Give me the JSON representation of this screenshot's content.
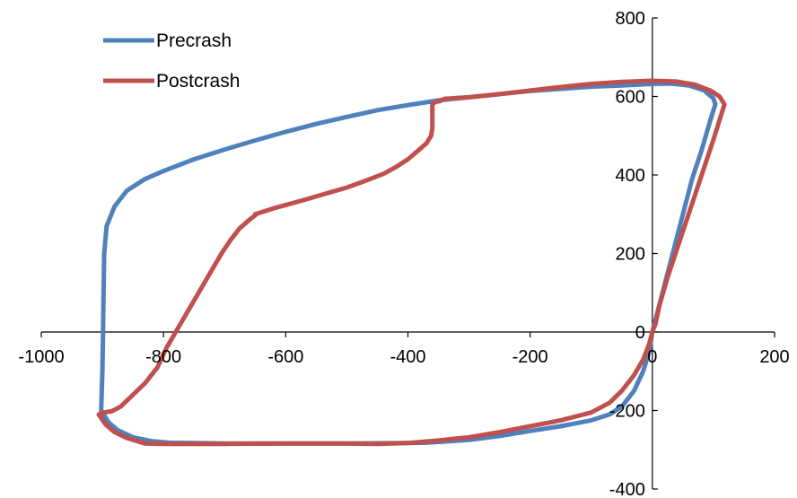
{
  "chart_data": {
    "type": "line",
    "title": "",
    "xlabel": "",
    "ylabel": "",
    "xlim": [
      -1000,
      200
    ],
    "ylim": [
      -400,
      800
    ],
    "xticks": [
      -1000,
      -800,
      -600,
      -400,
      -200,
      0,
      200
    ],
    "yticks": [
      -400,
      -200,
      0,
      200,
      400,
      600,
      800
    ],
    "axes_cross_at": [
      0,
      0
    ],
    "grid": false,
    "legend": "top-left",
    "series": [
      {
        "name": "Precrash",
        "color": "#4F81BD",
        "points": [
          [
            0,
            0
          ],
          [
            10,
            60
          ],
          [
            20,
            120
          ],
          [
            35,
            210
          ],
          [
            50,
            300
          ],
          [
            65,
            390
          ],
          [
            80,
            460
          ],
          [
            95,
            540
          ],
          [
            103,
            580
          ],
          [
            100,
            595
          ],
          [
            85,
            615
          ],
          [
            60,
            628
          ],
          [
            30,
            633
          ],
          [
            0,
            632
          ],
          [
            -50,
            628
          ],
          [
            -100,
            625
          ],
          [
            -200,
            614
          ],
          [
            -300,
            598
          ],
          [
            -350,
            590
          ],
          [
            -400,
            578
          ],
          [
            -450,
            565
          ],
          [
            -500,
            548
          ],
          [
            -550,
            530
          ],
          [
            -600,
            510
          ],
          [
            -650,
            488
          ],
          [
            -700,
            465
          ],
          [
            -750,
            440
          ],
          [
            -800,
            410
          ],
          [
            -830,
            390
          ],
          [
            -860,
            360
          ],
          [
            -880,
            320
          ],
          [
            -893,
            270
          ],
          [
            -897,
            200
          ],
          [
            -898,
            100
          ],
          [
            -899,
            0
          ],
          [
            -900,
            -100
          ],
          [
            -902,
            -200
          ],
          [
            -890,
            -230
          ],
          [
            -875,
            -250
          ],
          [
            -850,
            -268
          ],
          [
            -820,
            -278
          ],
          [
            -790,
            -282
          ],
          [
            -750,
            -283
          ],
          [
            -700,
            -284
          ],
          [
            -600,
            -284
          ],
          [
            -500,
            -284
          ],
          [
            -400,
            -283
          ],
          [
            -370,
            -282
          ],
          [
            -300,
            -275
          ],
          [
            -250,
            -265
          ],
          [
            -200,
            -252
          ],
          [
            -150,
            -240
          ],
          [
            -100,
            -225
          ],
          [
            -70,
            -210
          ],
          [
            -50,
            -190
          ],
          [
            -30,
            -150
          ],
          [
            -15,
            -100
          ],
          [
            -5,
            -50
          ],
          [
            0,
            0
          ]
        ]
      },
      {
        "name": "Postcrash",
        "color": "#C0504D",
        "points": [
          [
            -650,
            300
          ],
          [
            -620,
            315
          ],
          [
            -580,
            332
          ],
          [
            -540,
            350
          ],
          [
            -500,
            368
          ],
          [
            -470,
            385
          ],
          [
            -440,
            403
          ],
          [
            -420,
            420
          ],
          [
            -400,
            440
          ],
          [
            -385,
            460
          ],
          [
            -370,
            480
          ],
          [
            -362,
            500
          ],
          [
            -360,
            520
          ],
          [
            -360,
            540
          ],
          [
            -360,
            560
          ],
          [
            -360,
            580
          ],
          [
            -355,
            586
          ],
          [
            -348,
            588
          ],
          [
            -340,
            594
          ],
          [
            -300,
            598
          ],
          [
            -250,
            606
          ],
          [
            -200,
            615
          ],
          [
            -150,
            624
          ],
          [
            -100,
            632
          ],
          [
            -50,
            637
          ],
          [
            0,
            640
          ],
          [
            40,
            638
          ],
          [
            70,
            630
          ],
          [
            95,
            615
          ],
          [
            110,
            600
          ],
          [
            118,
            580
          ],
          [
            112,
            550
          ],
          [
            100,
            490
          ],
          [
            85,
            420
          ],
          [
            70,
            350
          ],
          [
            55,
            280
          ],
          [
            40,
            210
          ],
          [
            25,
            140
          ],
          [
            12,
            70
          ],
          [
            5,
            20
          ],
          [
            0,
            0
          ],
          [
            -5,
            -30
          ],
          [
            -15,
            -70
          ],
          [
            -30,
            -110
          ],
          [
            -50,
            -150
          ],
          [
            -70,
            -180
          ],
          [
            -100,
            -205
          ],
          [
            -150,
            -225
          ],
          [
            -200,
            -240
          ],
          [
            -250,
            -255
          ],
          [
            -300,
            -268
          ],
          [
            -350,
            -276
          ],
          [
            -400,
            -283
          ],
          [
            -450,
            -285
          ],
          [
            -500,
            -284
          ],
          [
            -600,
            -284
          ],
          [
            -700,
            -285
          ],
          [
            -800,
            -285
          ],
          [
            -830,
            -284
          ],
          [
            -860,
            -270
          ],
          [
            -880,
            -255
          ],
          [
            -895,
            -235
          ],
          [
            -906,
            -210
          ],
          [
            -898,
            -205
          ],
          [
            -885,
            -202
          ],
          [
            -870,
            -190
          ],
          [
            -850,
            -160
          ],
          [
            -830,
            -130
          ],
          [
            -810,
            -90
          ],
          [
            -795,
            -40
          ],
          [
            -780,
            0
          ],
          [
            -765,
            40
          ],
          [
            -750,
            80
          ],
          [
            -735,
            120
          ],
          [
            -720,
            160
          ],
          [
            -705,
            200
          ],
          [
            -690,
            235
          ],
          [
            -675,
            265
          ],
          [
            -660,
            285
          ],
          [
            -648,
            300
          ]
        ]
      }
    ]
  }
}
